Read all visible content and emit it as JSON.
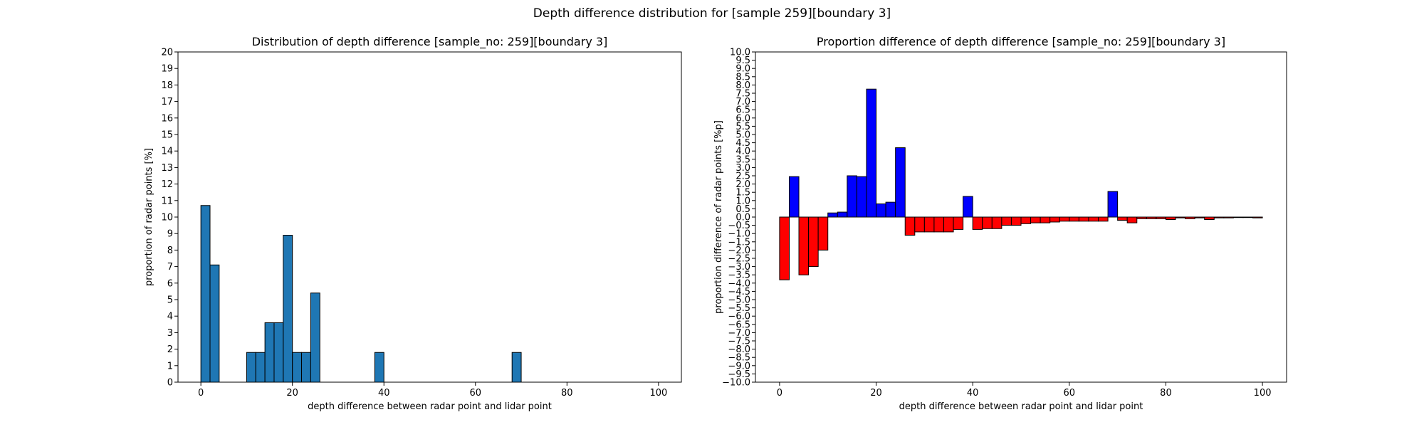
{
  "suptitle": "Depth difference distribution for [sample 259][boundary 3]",
  "chart_data": [
    {
      "type": "bar",
      "title": "Distribution of depth difference [sample_no: 259][boundary 3]",
      "xlabel": "depth difference between radar point and lidar point",
      "ylabel": "proportion of radar points [%]",
      "xlim": [
        -5,
        105
      ],
      "ylim": [
        0,
        20
      ],
      "xticks": [
        0,
        20,
        40,
        60,
        80,
        100
      ],
      "yticks": [
        0,
        1,
        2,
        3,
        4,
        5,
        6,
        7,
        8,
        9,
        10,
        11,
        12,
        13,
        14,
        15,
        16,
        17,
        18,
        19,
        20
      ],
      "bin_width": 2,
      "color": "#1f77b4",
      "bins_left": [
        0,
        2,
        10,
        12,
        14,
        16,
        18,
        20,
        22,
        24,
        38,
        68
      ],
      "values": [
        10.7,
        7.1,
        1.8,
        1.8,
        3.6,
        3.6,
        8.9,
        1.8,
        1.8,
        5.4,
        1.8,
        1.8
      ]
    },
    {
      "type": "bar",
      "title": "Proportion difference of depth difference [sample_no: 259][boundary 3]",
      "xlabel": "depth difference between radar point and lidar point",
      "ylabel": "proportion difference of radar points [%p]",
      "xlim": [
        -5,
        105
      ],
      "ylim": [
        -10,
        10
      ],
      "xticks": [
        0,
        20,
        40,
        60,
        80,
        100
      ],
      "yticks": [
        -10.0,
        -9.5,
        -9.0,
        -8.5,
        -8.0,
        -7.5,
        -7.0,
        -6.5,
        -6.0,
        -5.5,
        -5.0,
        -4.5,
        -4.0,
        -3.5,
        -3.0,
        -2.5,
        -2.0,
        -1.5,
        -1.0,
        -0.5,
        0.0,
        0.5,
        1.0,
        1.5,
        2.0,
        2.5,
        3.0,
        3.5,
        4.0,
        4.5,
        5.0,
        5.5,
        6.0,
        6.5,
        7.0,
        7.5,
        8.0,
        8.5,
        9.0,
        9.5,
        10.0
      ],
      "bin_width": 2,
      "positive_color": "#0000ff",
      "negative_color": "#ff0000",
      "bins_left": [
        0,
        2,
        4,
        6,
        8,
        10,
        12,
        14,
        16,
        18,
        20,
        22,
        24,
        26,
        28,
        30,
        32,
        34,
        36,
        38,
        40,
        42,
        44,
        46,
        48,
        50,
        52,
        54,
        56,
        58,
        60,
        62,
        64,
        66,
        68,
        70,
        72,
        74,
        76,
        78,
        80,
        82,
        84,
        86,
        88,
        90,
        92,
        94,
        96,
        98
      ],
      "values": [
        -3.8,
        2.45,
        -3.5,
        -3.0,
        -2.0,
        0.25,
        0.3,
        2.5,
        2.45,
        7.75,
        0.8,
        0.9,
        4.2,
        -1.1,
        -0.9,
        -0.9,
        -0.9,
        -0.9,
        -0.75,
        1.25,
        -0.75,
        -0.7,
        -0.7,
        -0.5,
        -0.5,
        -0.4,
        -0.35,
        -0.35,
        -0.3,
        -0.25,
        -0.25,
        -0.25,
        -0.25,
        -0.25,
        1.55,
        -0.2,
        -0.35,
        -0.1,
        -0.1,
        -0.1,
        -0.15,
        -0.05,
        -0.1,
        -0.05,
        -0.15,
        -0.05,
        -0.05,
        -0.03,
        -0.03,
        -0.05
      ]
    }
  ]
}
